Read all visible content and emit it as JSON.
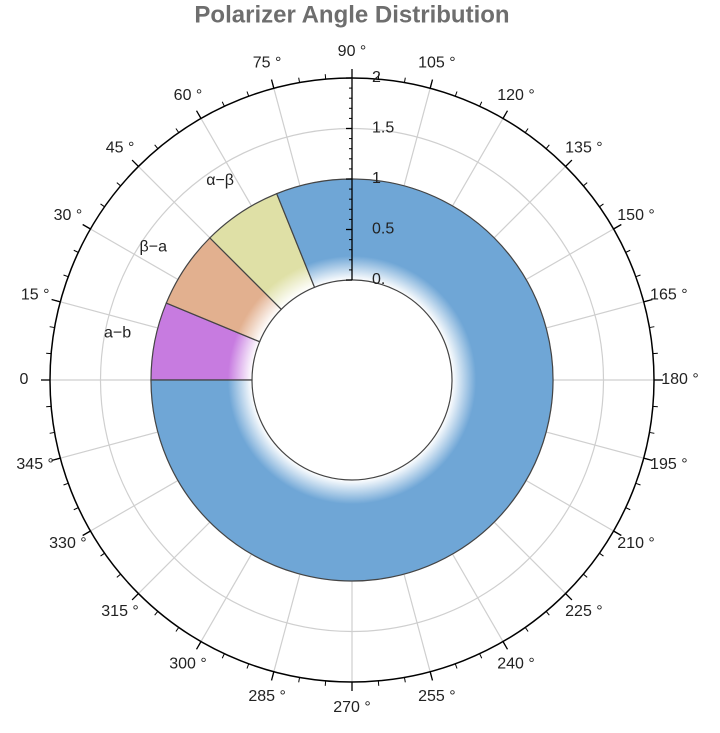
{
  "chart_data": {
    "type": "sector",
    "title": "Polarizer Angle Distribution",
    "categories": [
      "a−b",
      "β−a",
      "α−β",
      null
    ],
    "angle_starts": [
      0,
      22.5,
      45,
      68
    ],
    "angle_ends": [
      22.5,
      45,
      68,
      360
    ],
    "values": [
      1,
      1,
      1,
      1
    ],
    "colors": [
      "#c77be0",
      "#e2b08f",
      "#dfe0a6",
      "#6fa6d6"
    ],
    "rlim": [
      0,
      2
    ],
    "rticks": [
      {
        "value": 0,
        "label": "0."
      },
      0.5,
      1,
      1.5,
      2
    ],
    "thetaticks": [
      {
        "value": 0,
        "label": "0"
      },
      {
        "value": 15,
        "label": "15 °"
      },
      {
        "value": 30,
        "label": "30 °"
      },
      {
        "value": 45,
        "label": "45 °"
      },
      {
        "value": 60,
        "label": "60 °"
      },
      {
        "value": 75,
        "label": "75 °"
      },
      {
        "value": 90,
        "label": "90 °"
      },
      {
        "value": 105,
        "label": "105 °"
      },
      {
        "value": 120,
        "label": "120 °"
      },
      {
        "value": 135,
        "label": "135 °"
      },
      {
        "value": 150,
        "label": "150 °"
      },
      {
        "value": 165,
        "label": "165 °"
      },
      {
        "value": 180,
        "label": "180 °"
      },
      {
        "value": 195,
        "label": "195 °"
      },
      {
        "value": 210,
        "label": "210 °"
      },
      {
        "value": 225,
        "label": "225 °"
      },
      {
        "value": 240,
        "label": "240 °"
      },
      {
        "value": 255,
        "label": "255 °"
      },
      {
        "value": 270,
        "label": "270 °"
      },
      {
        "value": 285,
        "label": "285 °"
      },
      {
        "value": 300,
        "label": "300 °"
      },
      {
        "value": 315,
        "label": "315 °"
      },
      {
        "value": 330,
        "label": "330 °"
      },
      {
        "value": 345,
        "label": "345 °"
      }
    ],
    "grid": true
  }
}
